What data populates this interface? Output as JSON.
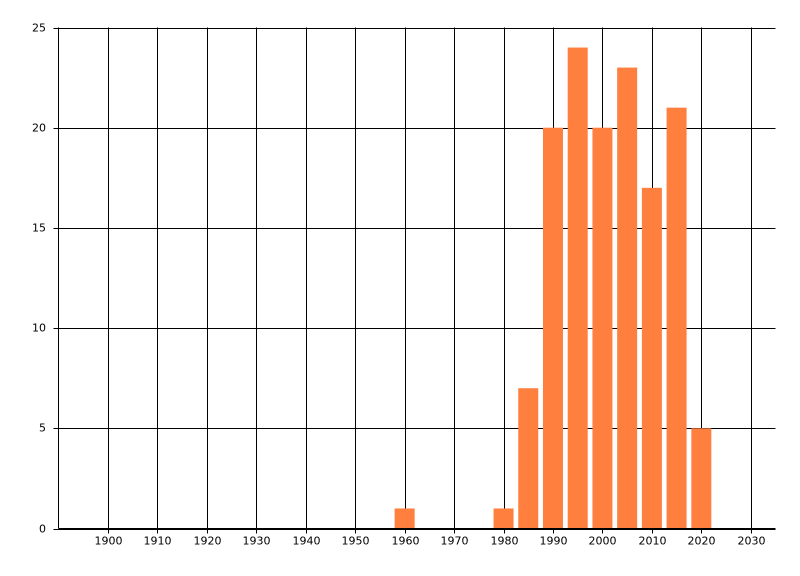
{
  "chart_data": {
    "type": "bar",
    "x": [
      1960,
      1980,
      1985,
      1990,
      1995,
      2000,
      2005,
      2010,
      2015,
      2020
    ],
    "values": [
      1,
      1,
      7,
      20,
      24,
      20,
      23,
      17,
      21,
      5
    ],
    "color": "#ff7f3f",
    "xlim": [
      1890,
      2035
    ],
    "xticks": [
      1900,
      1910,
      1920,
      1930,
      1940,
      1950,
      1960,
      1970,
      1980,
      1990,
      2000,
      2010,
      2020,
      2030
    ],
    "ylim": [
      0,
      25
    ],
    "yticks": [
      0,
      5,
      10,
      15,
      20,
      25
    ],
    "grid": true
  }
}
